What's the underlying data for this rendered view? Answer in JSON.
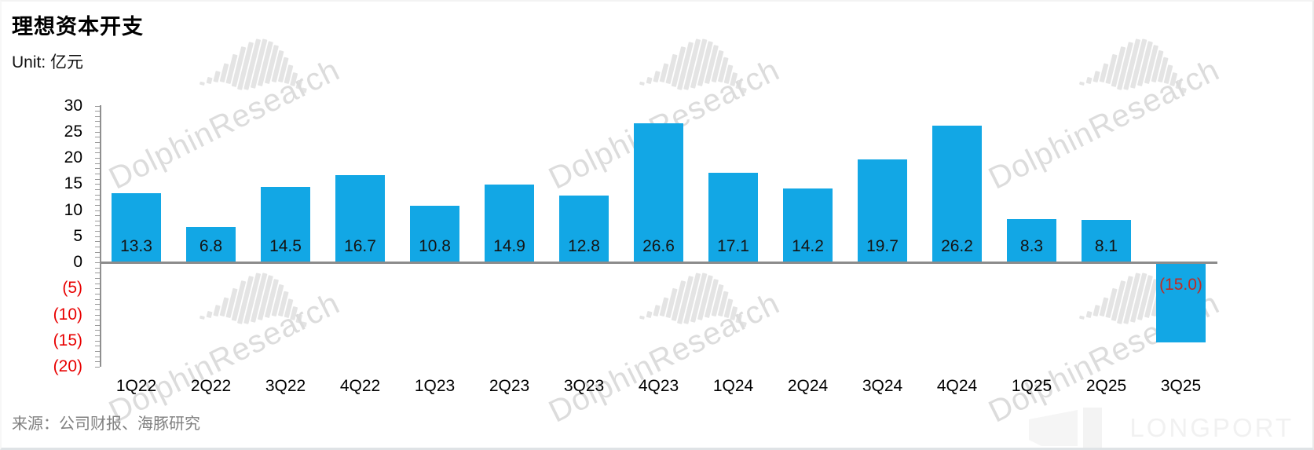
{
  "page": {
    "title": "理想资本开支",
    "unit_label": "Unit: 亿元",
    "source": "来源：公司财报、海豚研究",
    "watermark": "DolphinResearch",
    "brand": "LONGPORT"
  },
  "chart_data": {
    "type": "bar",
    "title": "理想资本开支",
    "unit": "亿元",
    "categories": [
      "1Q22",
      "2Q22",
      "3Q22",
      "4Q22",
      "1Q23",
      "2Q23",
      "3Q23",
      "4Q23",
      "1Q24",
      "2Q24",
      "3Q24",
      "4Q24",
      "1Q25",
      "2Q25",
      "3Q25"
    ],
    "values": [
      13.3,
      6.8,
      14.5,
      16.7,
      10.8,
      14.9,
      12.8,
      26.6,
      17.1,
      14.2,
      19.7,
      26.2,
      8.3,
      8.1,
      -15.0
    ],
    "bar_labels": [
      "13.3",
      "6.8",
      "14.5",
      "16.7",
      "10.8",
      "14.9",
      "12.8",
      "26.6",
      "17.1",
      "14.2",
      "19.7",
      "26.2",
      "8.3",
      "8.1",
      "(15.0)"
    ],
    "yticks": [
      {
        "v": 30,
        "label": "30"
      },
      {
        "v": 25,
        "label": "25"
      },
      {
        "v": 20,
        "label": "20"
      },
      {
        "v": 15,
        "label": "15"
      },
      {
        "v": 10,
        "label": "10"
      },
      {
        "v": 5,
        "label": "5"
      },
      {
        "v": 0,
        "label": "0"
      },
      {
        "v": -5,
        "label": "(5)"
      },
      {
        "v": -10,
        "label": "(10)"
      },
      {
        "v": -15,
        "label": "(15)"
      },
      {
        "v": -20,
        "label": "(20)"
      }
    ],
    "ylim": [
      -20,
      30
    ],
    "xlabel": "",
    "ylabel": "",
    "legend_position": "none",
    "grid": false,
    "colors": {
      "bar": "#12a7e5",
      "positive_label": "#141414",
      "negative_label": "#bf2c24",
      "axis_negative_tick": "#e80000",
      "axis_line": "#8c8c8c"
    }
  }
}
